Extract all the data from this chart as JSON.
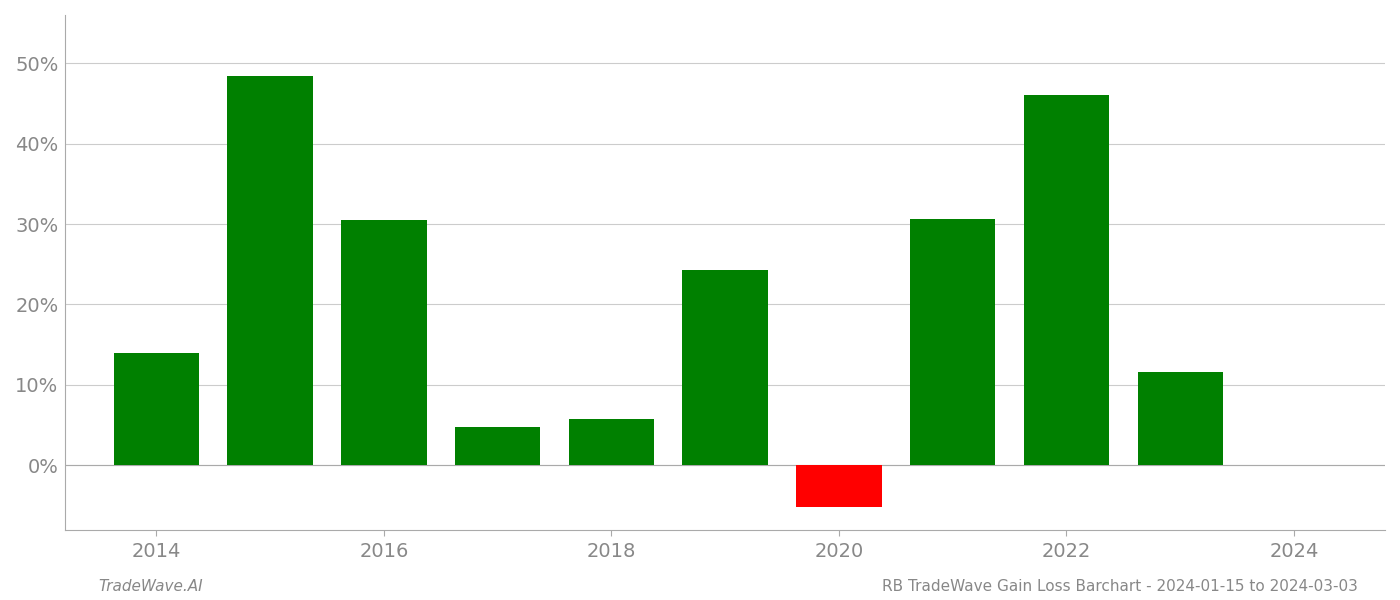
{
  "years": [
    2014,
    2015,
    2016,
    2017,
    2018,
    2019,
    2020,
    2021,
    2022,
    2023
  ],
  "values": [
    0.14,
    0.484,
    0.305,
    0.048,
    0.057,
    0.243,
    -0.052,
    0.306,
    0.46,
    0.116
  ],
  "bar_colors": [
    "#008000",
    "#008000",
    "#008000",
    "#008000",
    "#008000",
    "#008000",
    "#ff0000",
    "#008000",
    "#008000",
    "#008000"
  ],
  "ylim": [
    -0.08,
    0.56
  ],
  "yticks": [
    0.0,
    0.1,
    0.2,
    0.3,
    0.4,
    0.5
  ],
  "ytick_labels": [
    "0%",
    "10%",
    "20%",
    "30%",
    "40%",
    "50%"
  ],
  "xticks": [
    2014,
    2016,
    2018,
    2020,
    2022,
    2024
  ],
  "xlim": [
    2013.2,
    2024.8
  ],
  "background_color": "#ffffff",
  "grid_color": "#cccccc",
  "bar_width": 0.75,
  "footer_left": "TradeWave.AI",
  "footer_right": "RB TradeWave Gain Loss Barchart - 2024-01-15 to 2024-03-03",
  "spine_color": "#aaaaaa",
  "tick_color": "#888888",
  "fontsize_ticks": 14,
  "fontsize_footer": 11
}
